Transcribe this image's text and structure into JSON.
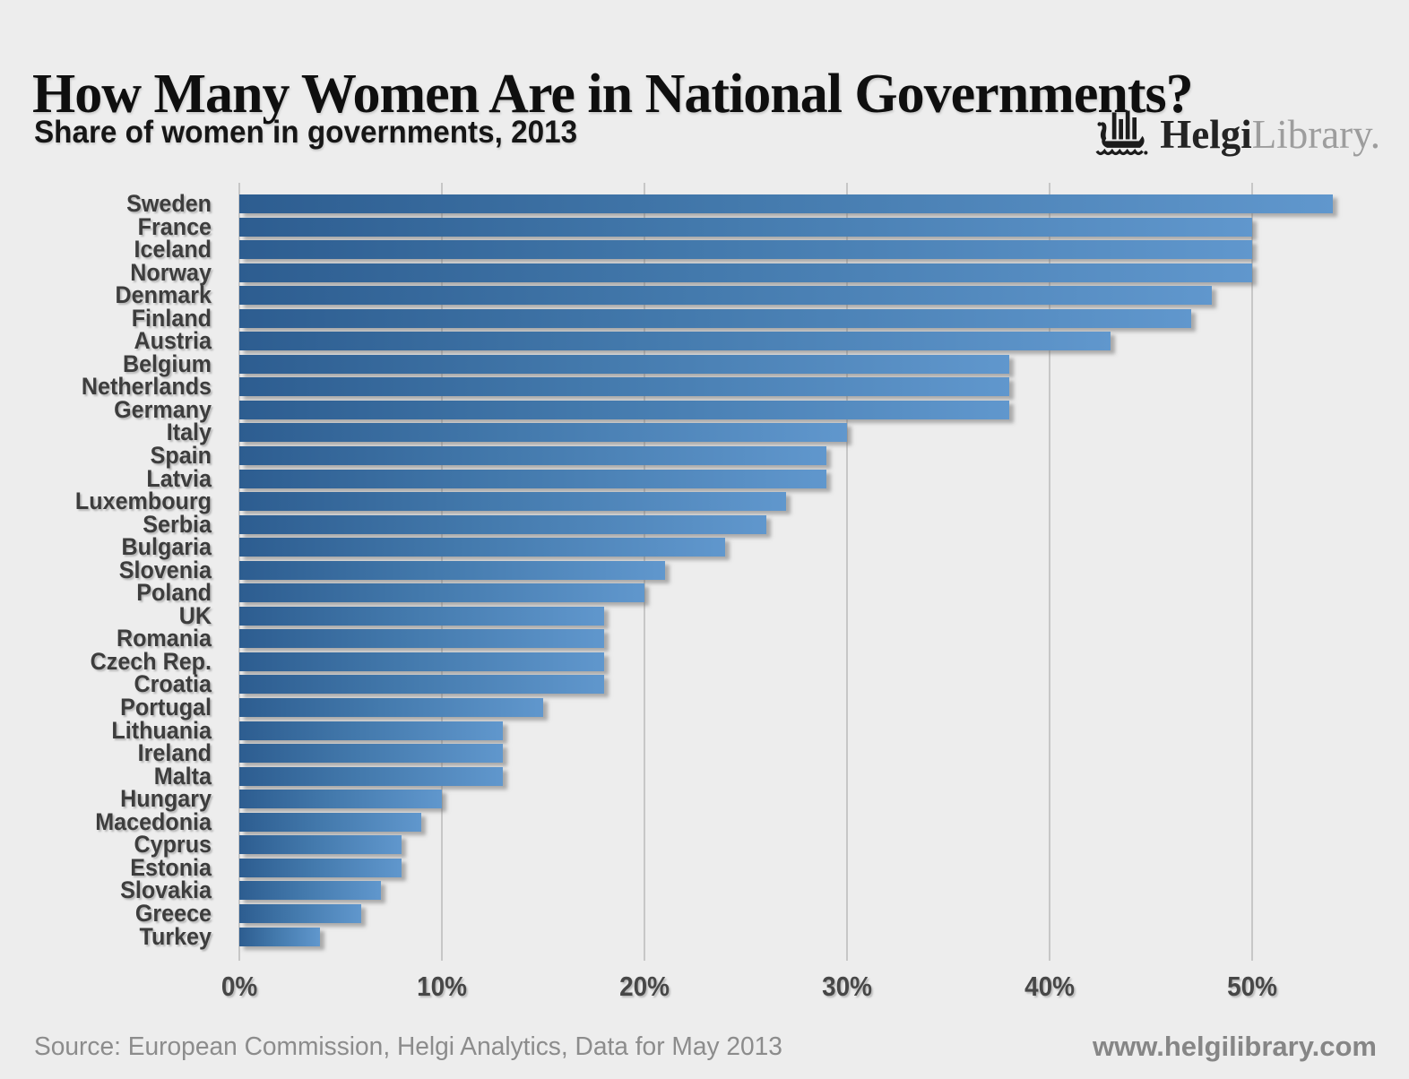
{
  "header": {
    "title": "How Many Women Are in National Governments?",
    "subtitle": "Share of women in governments, 2013",
    "logo": {
      "bold_text": "Helgi",
      "light_text": "Library.",
      "icon": "viking-ship-icon"
    }
  },
  "chart_data": {
    "type": "bar",
    "orientation": "horizontal",
    "title": "How Many Women Are in National Governments?",
    "subtitle": "Share of women in governments, 2013",
    "unit": "%",
    "categories": [
      "Sweden",
      "France",
      "Iceland",
      "Norway",
      "Denmark",
      "Finland",
      "Austria",
      "Belgium",
      "Netherlands",
      "Germany",
      "Italy",
      "Spain",
      "Latvia",
      "Luxembourg",
      "Serbia",
      "Bulgaria",
      "Slovenia",
      "Poland",
      "UK",
      "Romania",
      "Czech Rep.",
      "Croatia",
      "Portugal",
      "Lithuania",
      "Ireland",
      "Malta",
      "Hungary",
      "Macedonia",
      "Cyprus",
      "Estonia",
      "Slovakia",
      "Greece",
      "Turkey"
    ],
    "values": [
      54,
      50,
      50,
      50,
      48,
      47,
      43,
      38,
      38,
      38,
      30,
      29,
      29,
      27,
      26,
      24,
      21,
      20,
      18,
      18,
      18,
      18,
      15,
      13,
      13,
      13,
      10,
      9,
      8,
      8,
      7,
      6,
      4
    ],
    "x_ticks": [
      "0%",
      "10%",
      "20%",
      "30%",
      "40%",
      "50%"
    ],
    "x_tick_values": [
      0,
      10,
      20,
      30,
      40,
      50
    ],
    "xlim": [
      0,
      56
    ],
    "grid": "vertical-gridlines-on",
    "legend": "none",
    "bar_color_start": "#2d5d90",
    "bar_color_end": "#6097cd",
    "background_color": "#ededed"
  },
  "footer": {
    "source": "Source: European Commission, Helgi Analytics, Data for May 2013",
    "website": "www.helgilibrary.com"
  }
}
